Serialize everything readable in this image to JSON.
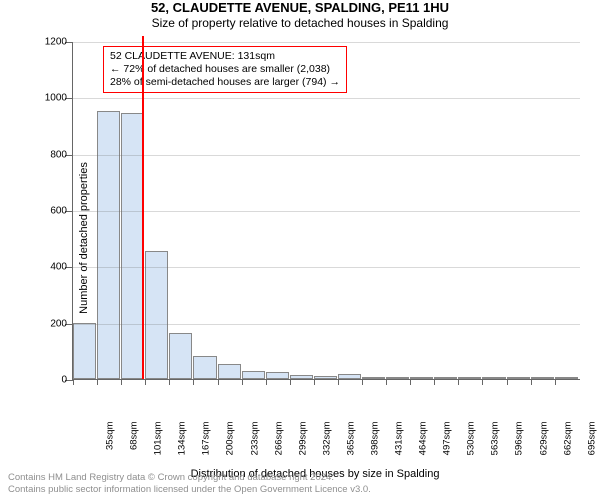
{
  "header": {
    "title": "52, CLAUDETTE AVENUE, SPALDING, PE11 1HU",
    "subtitle": "Size of property relative to detached houses in Spalding"
  },
  "chart": {
    "type": "histogram",
    "ylabel": "Number of detached properties",
    "xlabel": "Distribution of detached houses by size in Spalding",
    "background_color": "#ffffff",
    "grid_color": "#666666",
    "grid_opacity": 0.25,
    "bar_fill": "#d6e4f5",
    "bar_border": "#888888",
    "ylim": [
      0,
      1200
    ],
    "ytick_step": 200,
    "xlim_sqm": [
      35,
      731
    ],
    "xtick_start": 35,
    "xtick_step": 33,
    "xtick_count": 21,
    "xtick_unit": "sqm",
    "bin_width_sqm": 33,
    "values": [
      200,
      950,
      945,
      455,
      165,
      80,
      55,
      30,
      25,
      15,
      12,
      18,
      5,
      4,
      3,
      2,
      2,
      1,
      1,
      1,
      1
    ],
    "marker": {
      "value_sqm": 131,
      "color": "#ff0000",
      "width": 2
    },
    "callout": {
      "line1": "52 CLAUDETTE AVENUE: 131sqm",
      "line2": "← 72% of detached houses are smaller (2,038)",
      "line3": "28% of semi-detached houses are larger (794) →",
      "border_color": "#ff0000",
      "text_color": "#000000"
    },
    "label_fontsize": 11,
    "tick_fontsize": 10,
    "title_fontsize": 13
  },
  "attribution": {
    "line1": "Contains HM Land Registry data © Crown copyright and database right 2024.",
    "line2": "Contains public sector information licensed under the Open Government Licence v3.0."
  }
}
